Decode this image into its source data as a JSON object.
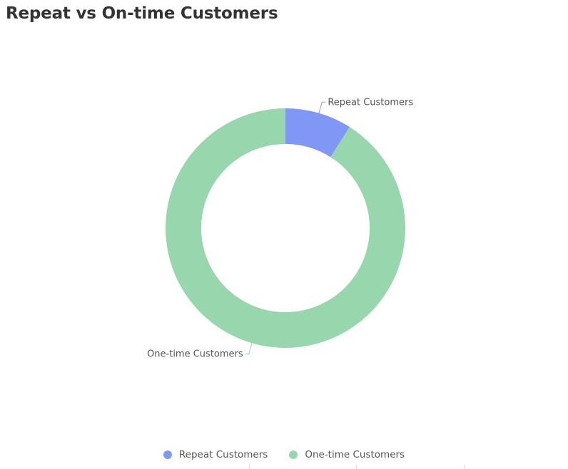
{
  "chart_data": {
    "type": "pie",
    "title": "Repeat vs On-time Customers",
    "donut": true,
    "categories": [
      "Repeat Customers",
      "One-time Customers"
    ],
    "values": [
      9,
      91
    ],
    "colors": [
      "#8097f5",
      "#98d6ae"
    ],
    "legend_position": "bottom-center"
  }
}
